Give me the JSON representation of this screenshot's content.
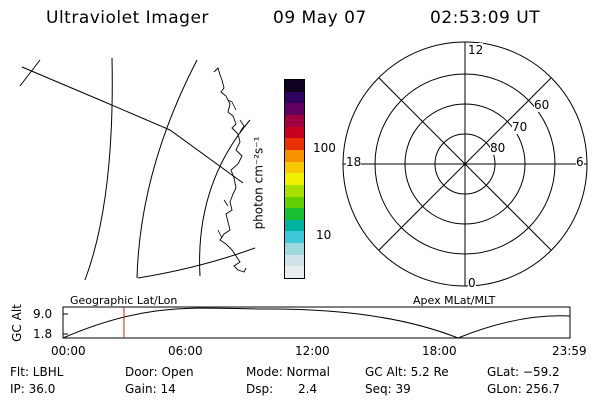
{
  "header": {
    "instrument": "Ultraviolet Imager",
    "date": "09 May 07",
    "time": "02:53:09 UT"
  },
  "colorbar": {
    "unit_label": "photon cm⁻²s⁻¹",
    "ticks": [
      "100",
      "10"
    ],
    "colors": [
      "#e8eef0",
      "#cfe3e8",
      "#9fd9e0",
      "#3cc8d8",
      "#00b4a0",
      "#18c030",
      "#60d000",
      "#a8e000",
      "#f0f000",
      "#f8c800",
      "#f89000",
      "#e83000",
      "#c80020",
      "#a00040",
      "#600060",
      "#300060",
      "#100020"
    ]
  },
  "map": {
    "label": "Geographic Lat/Lon"
  },
  "polar": {
    "label": "Apex MLat/MLT",
    "mlt_labels": {
      "top": "12",
      "bottom": "0",
      "left": "18",
      "right": "6"
    },
    "lat_labels": [
      "60",
      "70",
      "80"
    ]
  },
  "timeline": {
    "ylabel": "GC Alt",
    "ytick_top": "9.0",
    "ytick_bottom": "1.8",
    "xticks": [
      "00:00",
      "06:00",
      "12:00",
      "18:00",
      "23:59"
    ],
    "current_time_marker_hours": 2.885
  },
  "status": {
    "flt": "Flt: LBHL",
    "ip": "IP: 36.0",
    "door": "Door: Open",
    "gain": "Gain: 14",
    "mode": "Mode: Normal",
    "dsp_label": "Dsp:",
    "dsp_value": "2.4",
    "gc_alt": "GC Alt: 5.2 Re",
    "seq": "Seq: 39",
    "glat": "GLat: −59.2",
    "glon": "GLon: 256.7"
  }
}
